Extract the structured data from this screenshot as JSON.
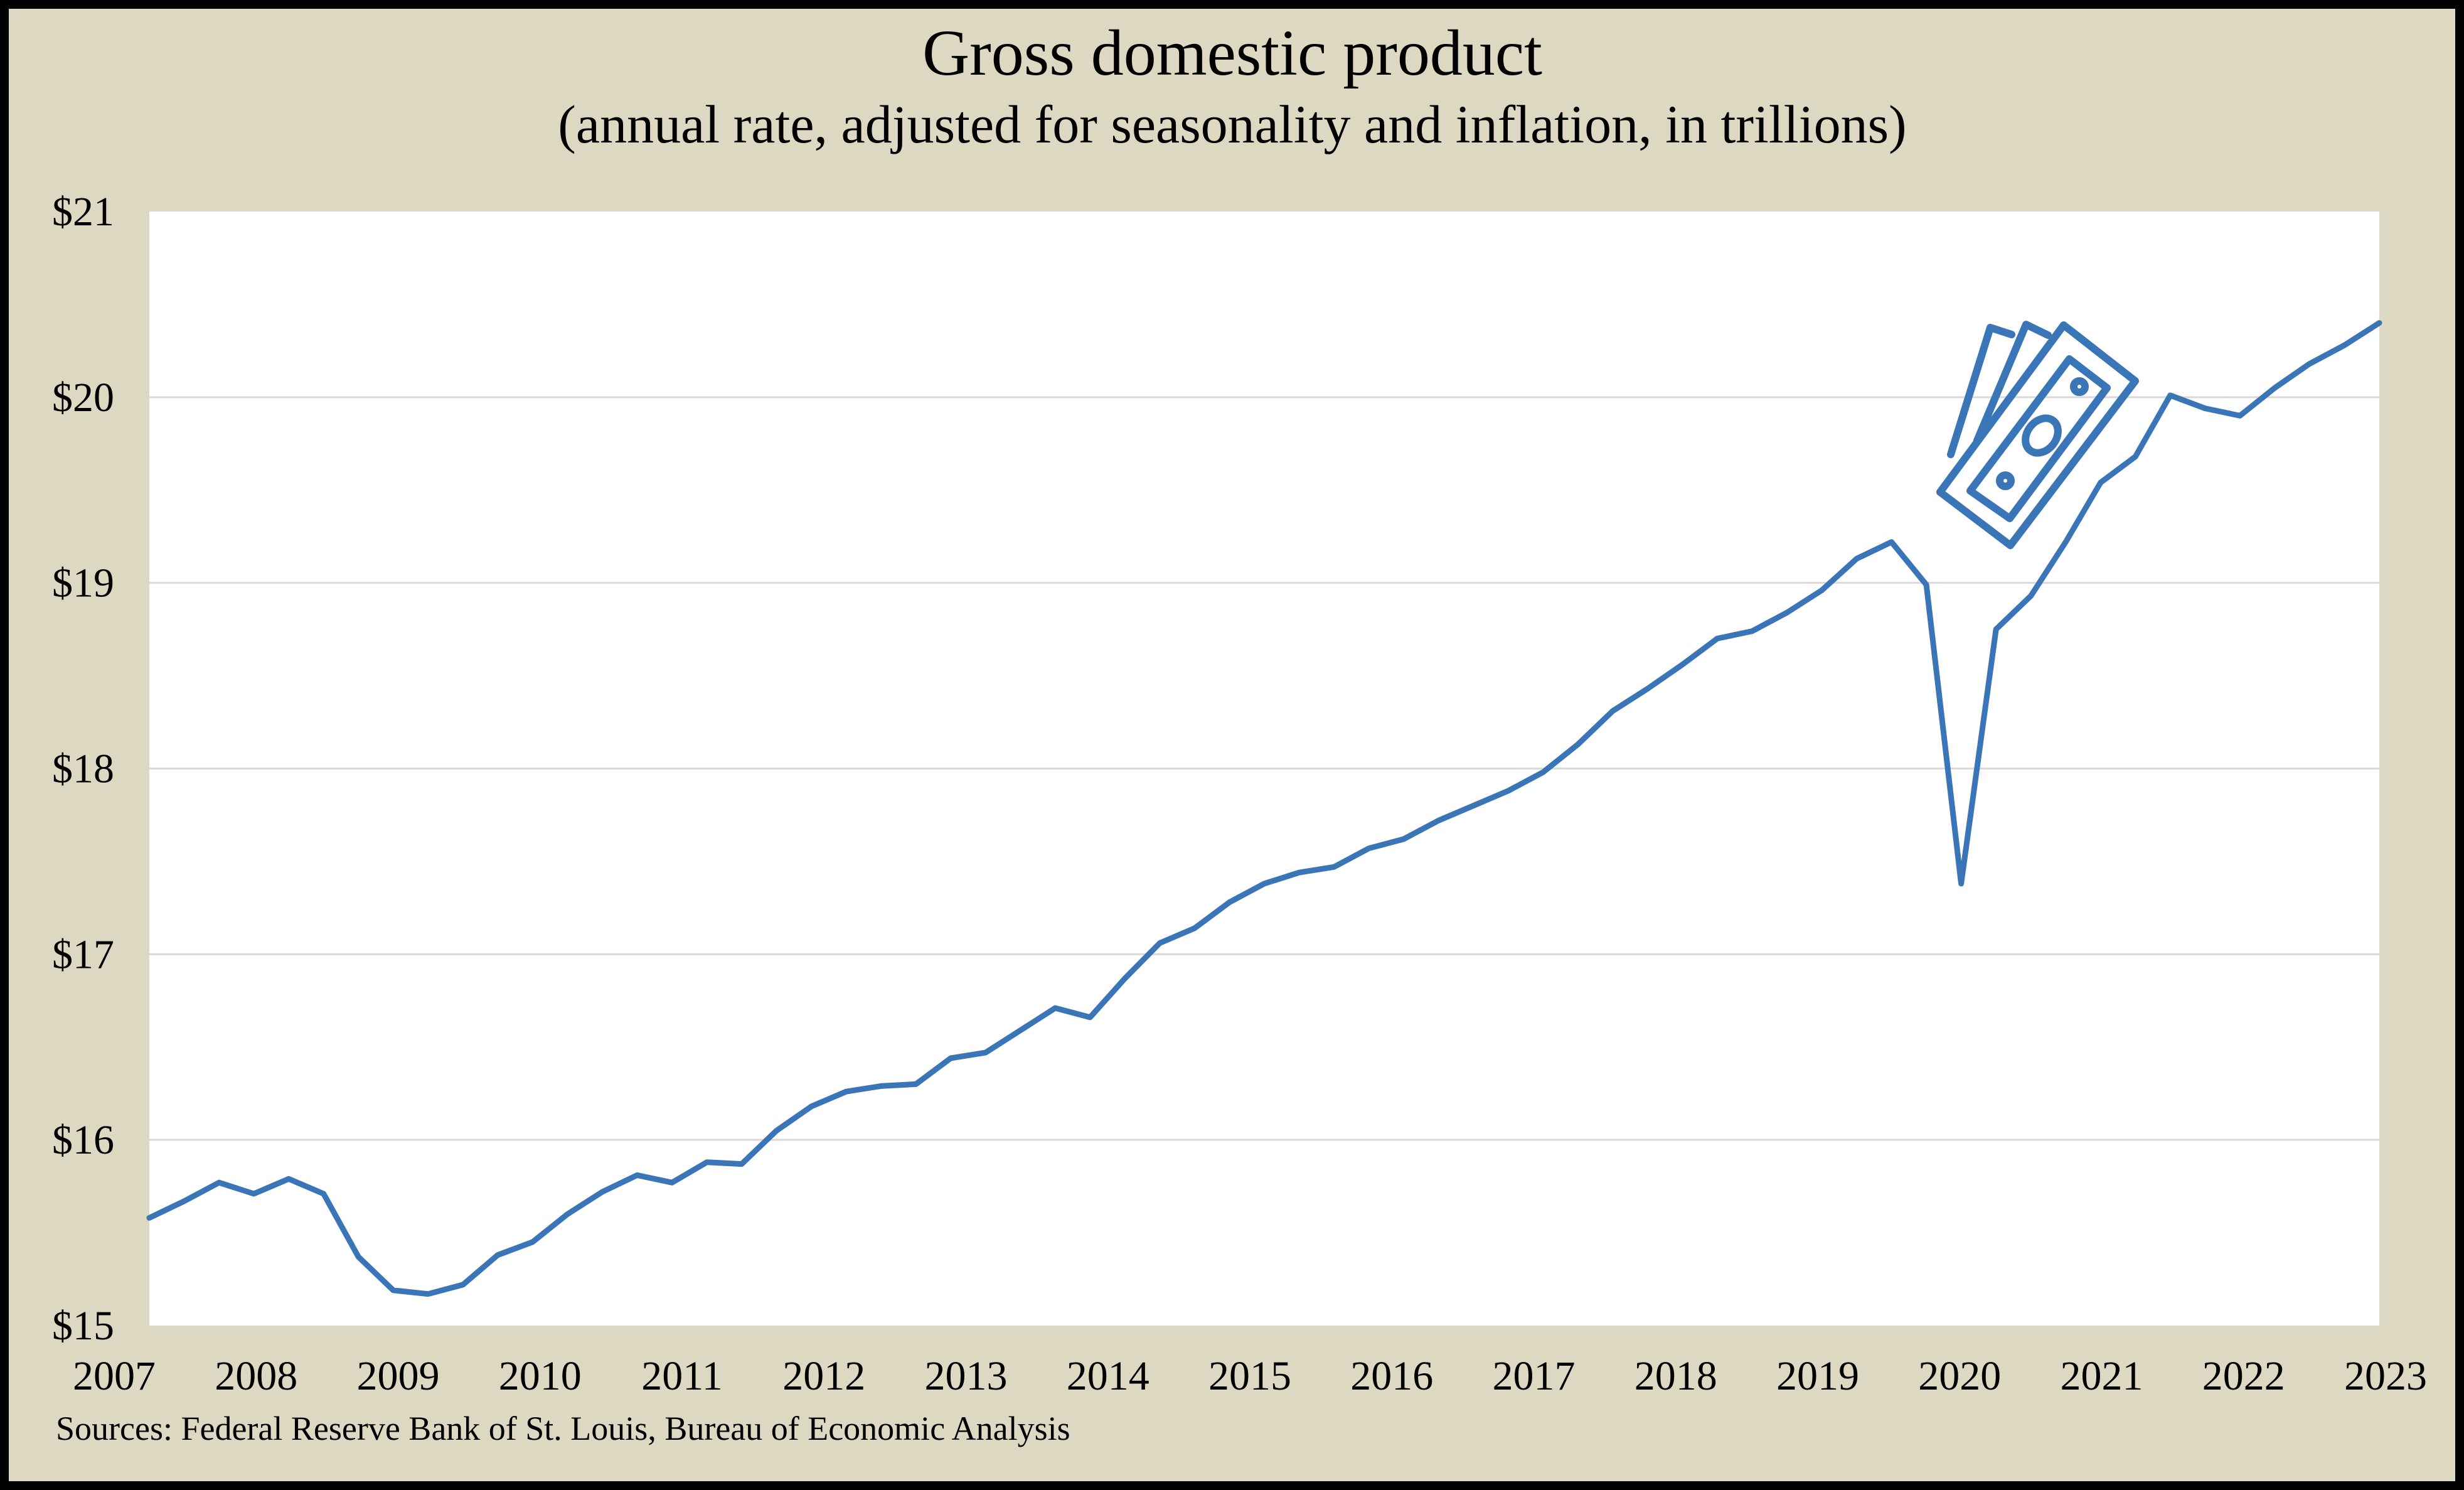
{
  "chart_data": {
    "type": "line",
    "title": "Gross domestic product",
    "subtitle": "(annual rate, adjusted for seasonality and inflation, in trillions)",
    "xlabel": "",
    "ylabel": "",
    "source": "Sources: Federal Reserve Bank of St. Louis, Bureau of Economic Analysis",
    "xlim": [
      2007,
      2023
    ],
    "ylim": [
      15,
      21
    ],
    "x_ticks": [
      "2007",
      "2008",
      "2009",
      "2010",
      "2011",
      "2012",
      "2013",
      "2014",
      "2015",
      "2016",
      "2017",
      "2018",
      "2019",
      "2020",
      "2021",
      "2022",
      "2023"
    ],
    "y_ticks": [
      "$15",
      "$16",
      "$17",
      "$18",
      "$19",
      "$20",
      "$21"
    ],
    "y_tick_values": [
      15,
      16,
      17,
      18,
      19,
      20,
      21
    ],
    "grid": true,
    "line_color": "#3a75b8",
    "icon": "money-bills-icon",
    "series": [
      {
        "x": [
          2007.0,
          2007.25,
          2007.5,
          2007.75,
          2008.0,
          2008.25,
          2008.5,
          2008.75,
          2009.0,
          2009.25,
          2009.5,
          2009.75,
          2010.0,
          2010.25,
          2010.5,
          2010.75,
          2011.0,
          2011.25,
          2011.5,
          2011.75,
          2012.0,
          2012.25,
          2012.5,
          2012.75,
          2013.0,
          2013.25,
          2013.5,
          2013.75,
          2014.0,
          2014.25,
          2014.5,
          2014.75,
          2015.0,
          2015.25,
          2015.5,
          2015.75,
          2016.0,
          2016.25,
          2016.5,
          2016.75,
          2017.0,
          2017.25,
          2017.5,
          2017.75,
          2018.0,
          2018.25,
          2018.5,
          2018.75,
          2019.0,
          2019.25,
          2019.5,
          2019.75,
          2020.0,
          2020.25,
          2020.5,
          2020.75,
          2021.0,
          2021.25,
          2021.5,
          2021.75,
          2022.0,
          2022.25,
          2022.5,
          2022.75,
          2023.0
        ],
        "values": [
          15.58,
          15.67,
          15.77,
          15.71,
          15.79,
          15.71,
          15.37,
          15.19,
          15.17,
          15.22,
          15.38,
          15.45,
          15.6,
          15.72,
          15.81,
          15.77,
          15.88,
          15.87,
          16.05,
          16.18,
          16.26,
          16.29,
          16.3,
          16.44,
          16.47,
          16.59,
          16.71,
          16.66,
          16.87,
          17.06,
          17.14,
          17.28,
          17.38,
          17.44,
          17.47,
          17.57,
          17.62,
          17.72,
          17.8,
          17.88,
          17.98,
          18.13,
          18.31,
          18.43,
          18.56,
          18.7,
          18.74,
          18.84,
          18.96,
          19.13,
          19.22,
          18.99,
          17.38,
          18.75,
          18.93,
          19.22,
          19.54,
          19.68,
          20.01,
          19.94,
          19.9,
          20.05,
          20.18,
          20.28,
          20.4
        ]
      }
    ]
  }
}
